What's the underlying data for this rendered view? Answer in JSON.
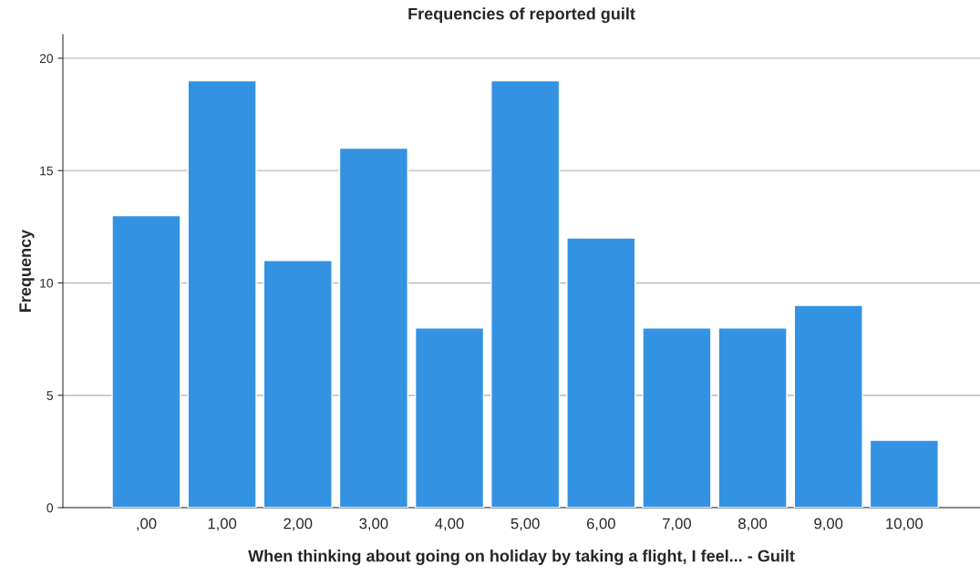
{
  "chart_data": {
    "type": "bar",
    "title": "Frequencies of reported guilt",
    "xlabel": "When thinking about going on holiday by taking a flight, I feel... - Guilt",
    "ylabel": "Frequency",
    "categories": [
      ",00",
      "1,00",
      "2,00",
      "3,00",
      "4,00",
      "5,00",
      "6,00",
      "7,00",
      "8,00",
      "9,00",
      "10,00"
    ],
    "values": [
      13,
      19,
      11,
      16,
      8,
      19,
      12,
      8,
      8,
      9,
      3
    ],
    "color": "#3392e2",
    "ylim": [
      0,
      21.05
    ],
    "yticks": [
      0,
      5,
      10,
      15,
      20
    ],
    "grid": "y",
    "legend": false
  }
}
